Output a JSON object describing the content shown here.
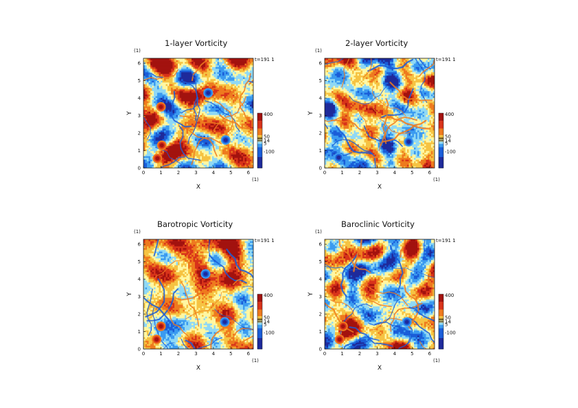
{
  "colors": {
    "colorbar": [
      "#1e2a9b",
      "#1a5dd8",
      "#3b9bf0",
      "#8fd8f5",
      "#fff7a3",
      "#f6c342",
      "#ee7a1e",
      "#d8331a",
      "#a3120f"
    ],
    "background": "#ffffff",
    "axis": "#111111"
  },
  "chart_data": [
    {
      "type": "heatmap",
      "title": "1-layer Vorticity",
      "xlabel": "X",
      "ylabel": "Y",
      "unit_label": "(1)",
      "time_label": "t=191 1",
      "xlim": [
        0,
        6.28
      ],
      "ylim": [
        0,
        6.28
      ],
      "x_ticks": [
        "0",
        "1",
        "2",
        "3",
        "4",
        "5",
        "6"
      ],
      "y_ticks": [
        "0",
        "1",
        "2",
        "3",
        "4",
        "5",
        "6"
      ],
      "colorbar_ticks": [
        "400",
        "50",
        "14",
        "5",
        "-100"
      ],
      "grid": false,
      "features": [
        {
          "kind": "vortex",
          "x": 0.8,
          "y": 0.55,
          "sign": "positive"
        },
        {
          "kind": "vortex",
          "x": 1.05,
          "y": 1.3,
          "sign": "positive"
        },
        {
          "kind": "vortex",
          "x": 4.7,
          "y": 1.6,
          "sign": "negative"
        },
        {
          "kind": "vortex",
          "x": 3.7,
          "y": 4.3,
          "sign": "negative"
        },
        {
          "kind": "vortex",
          "x": 1.0,
          "y": 3.5,
          "sign": "positive"
        }
      ]
    },
    {
      "type": "heatmap",
      "title": "2-layer Vorticity",
      "xlabel": "X",
      "ylabel": "Y",
      "unit_label": "(1)",
      "time_label": "t=191 1",
      "xlim": [
        0,
        6.28
      ],
      "ylim": [
        0,
        6.28
      ],
      "x_ticks": [
        "0",
        "1",
        "2",
        "3",
        "4",
        "5",
        "6"
      ],
      "y_ticks": [
        "0",
        "1",
        "2",
        "3",
        "4",
        "5",
        "6"
      ],
      "colorbar_ticks": [
        "400",
        "50",
        "14",
        "5",
        "-100"
      ],
      "grid": false,
      "features": [
        {
          "kind": "vortex",
          "x": 4.8,
          "y": 1.5,
          "sign": "negative"
        },
        {
          "kind": "vortex",
          "x": 0.8,
          "y": 0.6,
          "sign": "negative"
        }
      ]
    },
    {
      "type": "heatmap",
      "title": "Barotropic Vorticity",
      "xlabel": "X",
      "ylabel": "Y",
      "unit_label": "(1)",
      "time_label": "t=191 1",
      "xlim": [
        0,
        6.28
      ],
      "ylim": [
        0,
        6.28
      ],
      "x_ticks": [
        "0",
        "1",
        "2",
        "3",
        "4",
        "5",
        "6"
      ],
      "y_ticks": [
        "0",
        "1",
        "2",
        "3",
        "4",
        "5",
        "6"
      ],
      "colorbar_ticks": [
        "400",
        "50",
        "14",
        "5",
        "-100"
      ],
      "grid": false,
      "features": [
        {
          "kind": "vortex",
          "x": 0.75,
          "y": 0.55,
          "sign": "positive"
        },
        {
          "kind": "vortex",
          "x": 1.0,
          "y": 1.3,
          "sign": "positive"
        },
        {
          "kind": "vortex",
          "x": 4.65,
          "y": 1.55,
          "sign": "negative"
        },
        {
          "kind": "vortex",
          "x": 3.55,
          "y": 4.3,
          "sign": "negative"
        }
      ]
    },
    {
      "type": "heatmap",
      "title": "Baroclinic Vorticity",
      "xlabel": "X",
      "ylabel": "Y",
      "unit_label": "(1)",
      "time_label": "t=191 1",
      "xlim": [
        0,
        6.28
      ],
      "ylim": [
        0,
        6.28
      ],
      "x_ticks": [
        "0",
        "1",
        "2",
        "3",
        "4",
        "5",
        "6"
      ],
      "y_ticks": [
        "0",
        "1",
        "2",
        "3",
        "4",
        "5",
        "6"
      ],
      "colorbar_ticks": [
        "400",
        "50",
        "14",
        "5",
        "-100"
      ],
      "grid": false,
      "features": [
        {
          "kind": "vortex",
          "x": 0.85,
          "y": 0.55,
          "sign": "positive"
        },
        {
          "kind": "vortex",
          "x": 1.05,
          "y": 1.3,
          "sign": "positive"
        },
        {
          "kind": "vortex",
          "x": 4.7,
          "y": 1.55,
          "sign": "negative"
        }
      ]
    }
  ]
}
